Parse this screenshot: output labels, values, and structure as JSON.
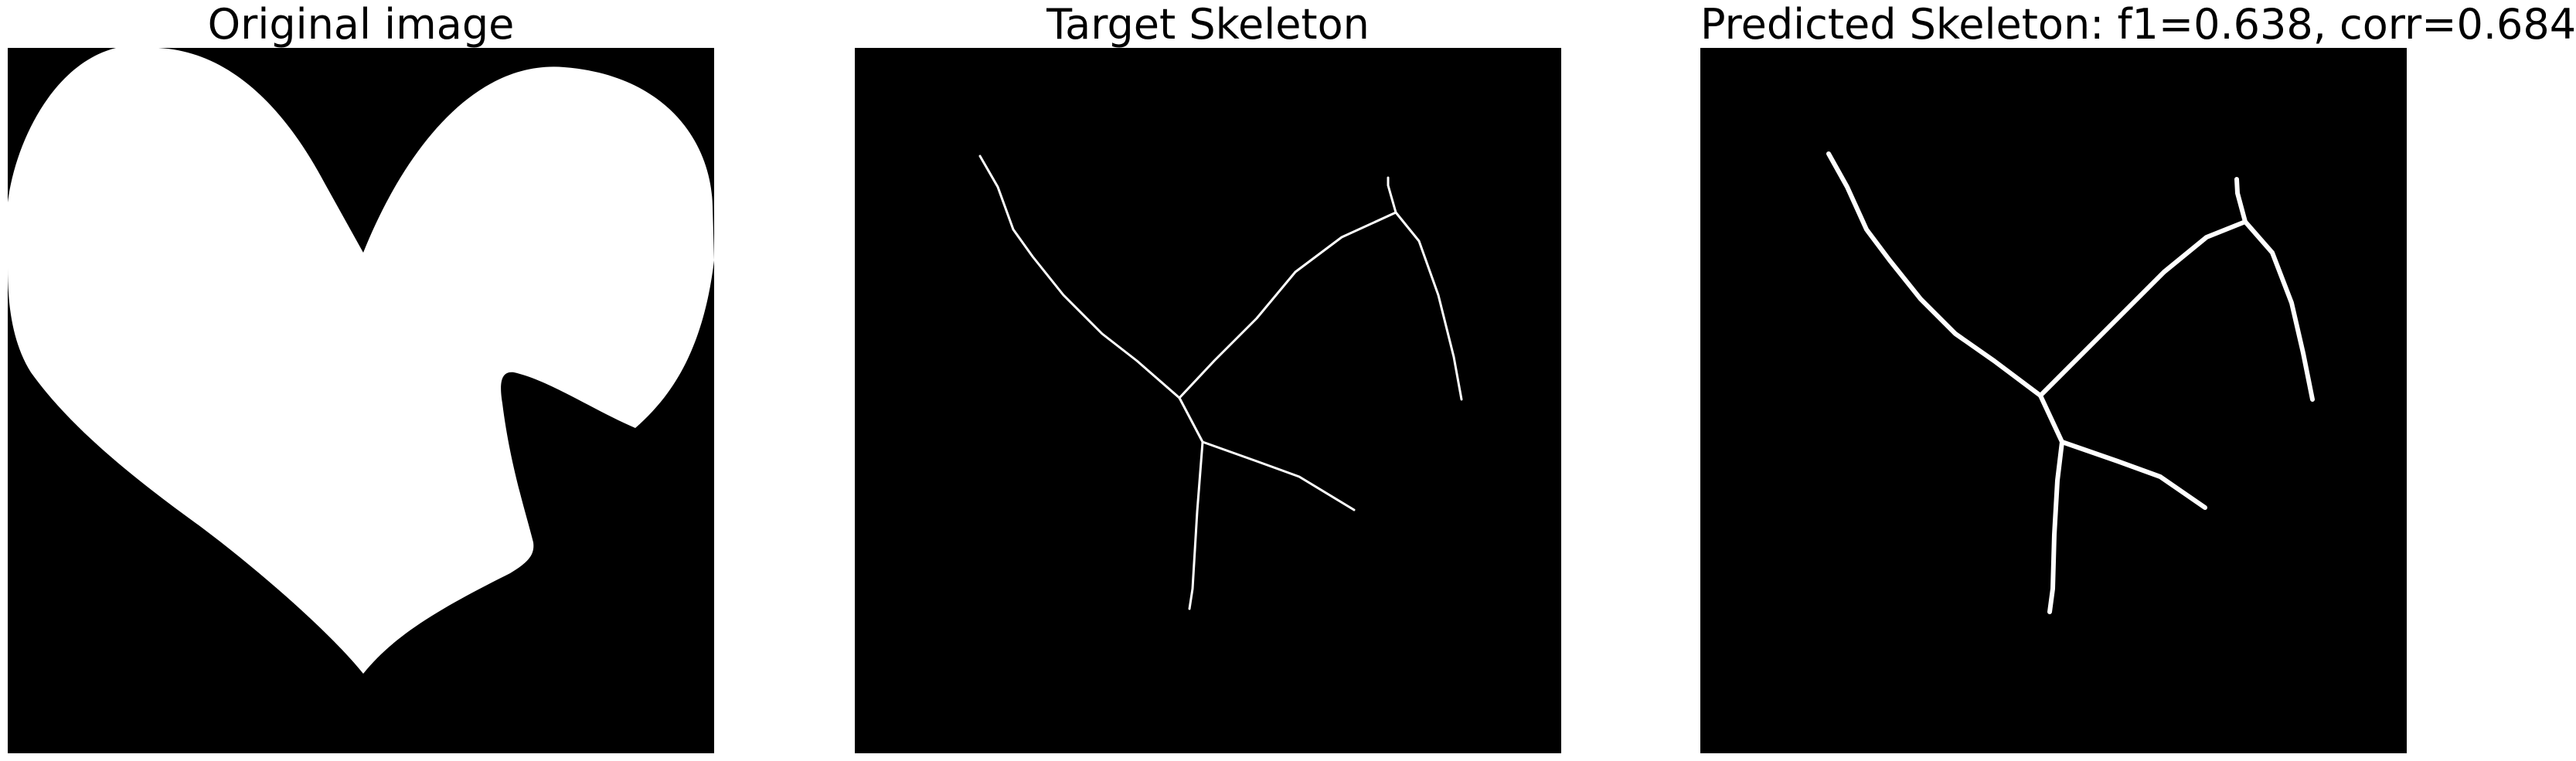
{
  "panels": [
    {
      "title": "Original image",
      "content": "binary-shape-mask"
    },
    {
      "title": "Target Skeleton",
      "content": "skeleton-thin"
    },
    {
      "title": "Predicted Skeleton: f1=0.638, corr=0.684",
      "content": "skeleton-thick"
    }
  ],
  "colors": {
    "background": "#000000",
    "foreground": "#ffffff",
    "page": "#ffffff",
    "text": "#000000"
  }
}
